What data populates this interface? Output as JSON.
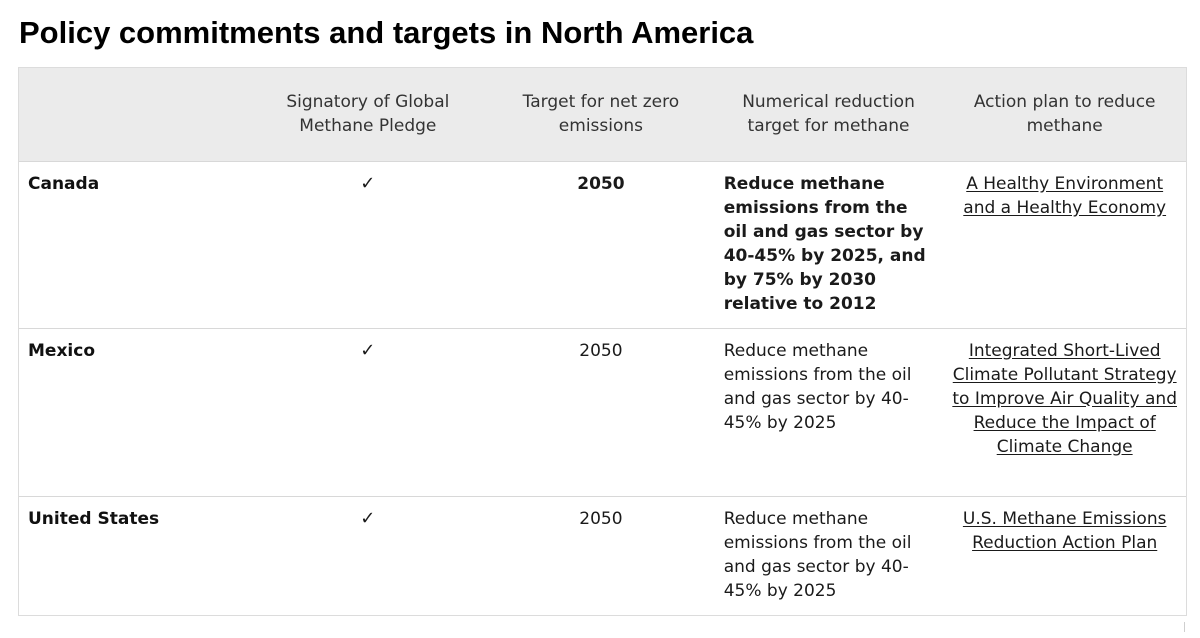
{
  "title": "Policy commitments and targets in North America",
  "table": {
    "headers": [
      "",
      "Signatory of Global Methane Pledge",
      "Target for net zero emissions",
      "Numerical reduction target for methane",
      "Action plan to reduce methane"
    ],
    "rows": [
      {
        "country": "Canada",
        "pledge": "✓",
        "net_zero": "2050",
        "methane_target": "Reduce methane emissions from the oil and gas sector by 40-45% by 2025, and by 75% by 2030 relative to 2012",
        "action_plan": "A Healthy Environment and a Healthy Economy"
      },
      {
        "country": "Mexico",
        "pledge": "✓",
        "net_zero": "2050",
        "methane_target": "Reduce methane emissions from the oil and gas sector by 40-45% by 2025",
        "action_plan": "Integrated Short-Lived Climate Pollutant Strategy to Improve Air Quality and Reduce the Impact of Climate Change"
      },
      {
        "country": "United States",
        "pledge": "✓",
        "net_zero": "2050",
        "methane_target": "Reduce methane emissions from the oil and gas sector by 40-45% by 2025",
        "action_plan": "U.S. Methane Emissions Reduction Action Plan"
      }
    ]
  }
}
